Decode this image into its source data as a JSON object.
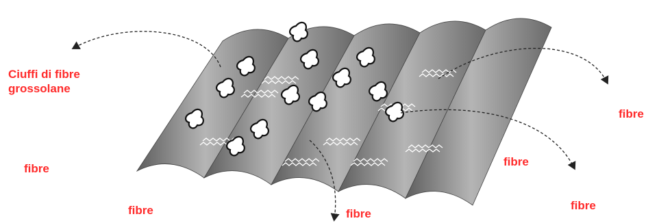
{
  "labels": {
    "tufts": {
      "lines": [
        "Ciuffi di fibre",
        "grossolane"
      ]
    },
    "fibres": [
      "fibre",
      "fibre",
      "fibre",
      "fibre",
      "fibre",
      "fibre"
    ]
  }
}
